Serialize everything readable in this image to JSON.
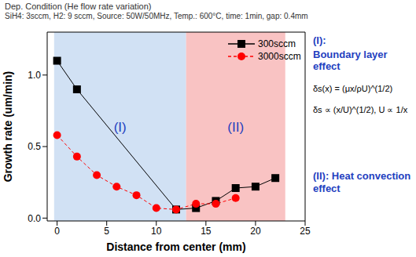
{
  "chart_data": {
    "type": "line",
    "title": "Dep. Condition (He flow rate variation)",
    "subtitle": "SiH4: 3sccm, H2: 9 sccm, Source: 50W/50MHz, Temp.: 600°C, time: 1min, gap: 0.4mm",
    "x_label": "Distance from center (mm)",
    "y_label": "Growth rate (um/min)",
    "xlim": [
      -1,
      25
    ],
    "xticks": [
      0,
      5,
      10,
      15,
      20,
      25
    ],
    "ylim": [
      -0.02,
      1.3
    ],
    "yticks": [
      {
        "value": 0,
        "label": "0.0"
      },
      {
        "value": 0.5,
        "label": "0.5"
      },
      {
        "value": 1,
        "label": "1.0"
      }
    ],
    "grid": false,
    "legend": "upper right",
    "series": [
      {
        "name": "300sccm",
        "color": "#000000",
        "marker": "square",
        "line_style": "solid",
        "x": [
          0,
          2,
          12,
          14,
          16,
          18,
          20,
          22
        ],
        "values": [
          1.1,
          0.9,
          0.06,
          0.07,
          0.12,
          0.21,
          0.22,
          0.28
        ]
      },
      {
        "name": "3000sccm",
        "color": "#ff0000",
        "marker": "circle",
        "line_style": "dashed",
        "x": [
          0,
          2,
          4,
          6,
          8,
          10,
          12,
          14,
          16,
          18
        ],
        "values": [
          0.58,
          0.43,
          0.3,
          0.22,
          0.16,
          0.07,
          0.06,
          0.1,
          0.1,
          0.14
        ]
      }
    ],
    "regions": [
      {
        "label": "(I)",
        "x": [
          -0.3,
          13
        ],
        "color": "#c5d9f1"
      },
      {
        "label": "(II)",
        "x": [
          13,
          23
        ],
        "color": "#f8b4b4"
      }
    ],
    "annotations": [
      {
        "text": "(I):",
        "color": "#1f3fbf"
      },
      {
        "text": "Boundary layer effect",
        "color": "#1f3fbf"
      },
      {
        "text": "δs(x) = (μx/ρU)^(1/2)",
        "color": "#000000"
      },
      {
        "text": "δs ∝ (x/U)^(1/2), U ∝ 1/x",
        "color": "#000000"
      },
      {
        "text": "(II): Heat convection effect",
        "color": "#1f3fbf"
      }
    ]
  }
}
